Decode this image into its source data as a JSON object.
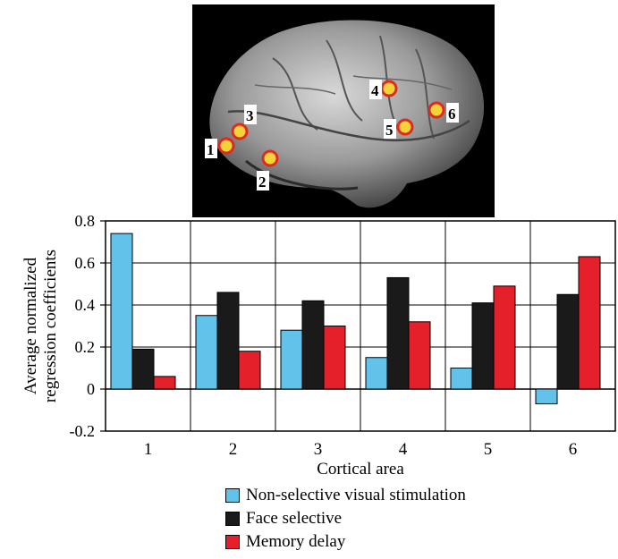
{
  "figure": {
    "marker_labels": [
      "1",
      "2",
      "3",
      "4",
      "5",
      "6"
    ]
  },
  "legend": {
    "items": [
      {
        "label": "Non-selective visual stimulation",
        "color": "#62c2ea"
      },
      {
        "label": "Face selective",
        "color": "#1a1a1a"
      },
      {
        "label": "Memory delay",
        "color": "#e6202a"
      }
    ]
  },
  "chart_data": {
    "type": "bar",
    "title": "",
    "xlabel": "Cortical area",
    "ylabel": "Average normalized regression coefficients",
    "categories": [
      "1",
      "2",
      "3",
      "4",
      "5",
      "6"
    ],
    "ylim": [
      -0.2,
      0.8
    ],
    "yticks": [
      "0.8",
      "0.6",
      "0.4",
      "0.2",
      "0",
      "-0.2"
    ],
    "ytick_values": [
      0.8,
      0.6,
      0.4,
      0.2,
      0,
      -0.2
    ],
    "grid": true,
    "legend_position": "bottom",
    "series": [
      {
        "name": "Non-selective visual stimulation",
        "color": "#62c2ea",
        "values": [
          0.74,
          0.35,
          0.28,
          0.15,
          0.1,
          -0.07
        ]
      },
      {
        "name": "Face selective",
        "color": "#1a1a1a",
        "values": [
          0.19,
          0.46,
          0.42,
          0.53,
          0.41,
          0.45
        ]
      },
      {
        "name": "Memory delay",
        "color": "#e6202a",
        "values": [
          0.06,
          0.18,
          0.3,
          0.32,
          0.49,
          0.63
        ]
      }
    ]
  }
}
